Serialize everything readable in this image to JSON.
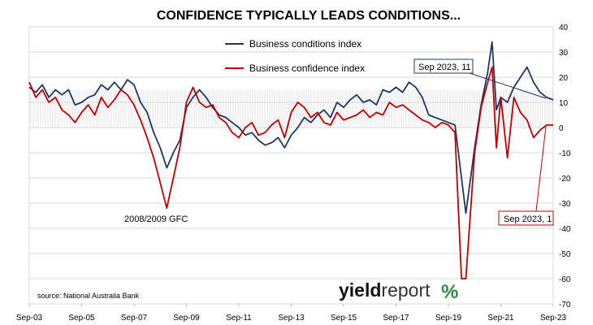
{
  "chart_data": {
    "type": "line",
    "title": "CONFIDENCE TYPICALLY LEADS CONDITIONS...",
    "x_tick_labels": [
      "Sep-03",
      "Sep-05",
      "Sep-07",
      "Sep-09",
      "Sep-11",
      "Sep-13",
      "Sep-15",
      "Sep-17",
      "Sep-19",
      "Sep-21",
      "Sep-23"
    ],
    "xlim": [
      "2003-09",
      "2023-09"
    ],
    "ylim": [
      -70,
      40
    ],
    "y_ticks": [
      40,
      30,
      20,
      10,
      0,
      -10,
      -20,
      -30,
      -40,
      -50,
      -60,
      -70
    ],
    "y_axis_side": "right",
    "legend_position": "top-center",
    "grid": true,
    "series": [
      {
        "name": "Business conditions index",
        "color": "#1f3864",
        "points": [
          [
            "2003-09",
            16
          ],
          [
            "2003-12",
            14
          ],
          [
            "2004-03",
            17
          ],
          [
            "2004-06",
            12
          ],
          [
            "2004-09",
            15
          ],
          [
            "2004-12",
            13
          ],
          [
            "2005-03",
            15
          ],
          [
            "2005-06",
            9
          ],
          [
            "2005-09",
            10
          ],
          [
            "2005-12",
            12
          ],
          [
            "2006-03",
            13
          ],
          [
            "2006-06",
            17
          ],
          [
            "2006-09",
            15
          ],
          [
            "2006-12",
            18
          ],
          [
            "2007-03",
            15
          ],
          [
            "2007-06",
            19
          ],
          [
            "2007-09",
            17
          ],
          [
            "2007-12",
            10
          ],
          [
            "2008-03",
            6
          ],
          [
            "2008-06",
            -2
          ],
          [
            "2008-09",
            -8
          ],
          [
            "2008-12",
            -16
          ],
          [
            "2009-03",
            -10
          ],
          [
            "2009-06",
            -5
          ],
          [
            "2009-09",
            8
          ],
          [
            "2009-12",
            12
          ],
          [
            "2010-03",
            15
          ],
          [
            "2010-06",
            12
          ],
          [
            "2010-09",
            8
          ],
          [
            "2010-12",
            5
          ],
          [
            "2011-03",
            4
          ],
          [
            "2011-06",
            2
          ],
          [
            "2011-09",
            0
          ],
          [
            "2011-12",
            -3
          ],
          [
            "2012-03",
            -2
          ],
          [
            "2012-06",
            -5
          ],
          [
            "2012-09",
            -7
          ],
          [
            "2012-12",
            -6
          ],
          [
            "2013-03",
            -4
          ],
          [
            "2013-06",
            -8
          ],
          [
            "2013-09",
            -3
          ],
          [
            "2013-12",
            0
          ],
          [
            "2014-03",
            4
          ],
          [
            "2014-06",
            2
          ],
          [
            "2014-09",
            5
          ],
          [
            "2014-12",
            7
          ],
          [
            "2015-03",
            4
          ],
          [
            "2015-06",
            10
          ],
          [
            "2015-09",
            8
          ],
          [
            "2015-12",
            11
          ],
          [
            "2016-03",
            13
          ],
          [
            "2016-06",
            10
          ],
          [
            "2016-09",
            11
          ],
          [
            "2016-12",
            9
          ],
          [
            "2017-03",
            15
          ],
          [
            "2017-06",
            14
          ],
          [
            "2017-09",
            16
          ],
          [
            "2017-12",
            14
          ],
          [
            "2018-03",
            18
          ],
          [
            "2018-06",
            16
          ],
          [
            "2018-09",
            12
          ],
          [
            "2018-12",
            5
          ],
          [
            "2019-03",
            4
          ],
          [
            "2019-06",
            3
          ],
          [
            "2019-09",
            2
          ],
          [
            "2019-12",
            1
          ],
          [
            "2020-03",
            -20
          ],
          [
            "2020-05",
            -34
          ],
          [
            "2020-09",
            -8
          ],
          [
            "2020-12",
            9
          ],
          [
            "2021-03",
            22
          ],
          [
            "2021-05",
            34
          ],
          [
            "2021-07",
            7
          ],
          [
            "2021-09",
            12
          ],
          [
            "2021-12",
            10
          ],
          [
            "2022-03",
            16
          ],
          [
            "2022-06",
            20
          ],
          [
            "2022-09",
            24
          ],
          [
            "2022-12",
            18
          ],
          [
            "2023-03",
            14
          ],
          [
            "2023-06",
            12
          ],
          [
            "2023-09",
            11
          ]
        ]
      },
      {
        "name": "Business confidence index",
        "color": "#c00000",
        "points": [
          [
            "2003-09",
            18
          ],
          [
            "2003-12",
            12
          ],
          [
            "2004-03",
            15
          ],
          [
            "2004-06",
            10
          ],
          [
            "2004-09",
            12
          ],
          [
            "2004-12",
            7
          ],
          [
            "2005-03",
            5
          ],
          [
            "2005-06",
            2
          ],
          [
            "2005-09",
            6
          ],
          [
            "2005-12",
            9
          ],
          [
            "2006-03",
            5
          ],
          [
            "2006-06",
            12
          ],
          [
            "2006-09",
            8
          ],
          [
            "2006-12",
            11
          ],
          [
            "2007-03",
            15
          ],
          [
            "2007-06",
            13
          ],
          [
            "2007-09",
            9
          ],
          [
            "2007-12",
            3
          ],
          [
            "2008-03",
            -4
          ],
          [
            "2008-06",
            -12
          ],
          [
            "2008-09",
            -22
          ],
          [
            "2008-12",
            -32
          ],
          [
            "2009-03",
            -20
          ],
          [
            "2009-06",
            -8
          ],
          [
            "2009-09",
            10
          ],
          [
            "2009-12",
            16
          ],
          [
            "2010-03",
            10
          ],
          [
            "2010-06",
            8
          ],
          [
            "2010-09",
            9
          ],
          [
            "2010-12",
            4
          ],
          [
            "2011-03",
            2
          ],
          [
            "2011-06",
            -2
          ],
          [
            "2011-09",
            -4
          ],
          [
            "2011-12",
            0
          ],
          [
            "2012-03",
            2
          ],
          [
            "2012-06",
            -3
          ],
          [
            "2012-09",
            -2
          ],
          [
            "2012-12",
            1
          ],
          [
            "2013-03",
            3
          ],
          [
            "2013-06",
            -4
          ],
          [
            "2013-09",
            6
          ],
          [
            "2013-12",
            10
          ],
          [
            "2014-03",
            8
          ],
          [
            "2014-06",
            4
          ],
          [
            "2014-09",
            6
          ],
          [
            "2014-12",
            2
          ],
          [
            "2015-03",
            1
          ],
          [
            "2015-06",
            6
          ],
          [
            "2015-09",
            3
          ],
          [
            "2015-12",
            4
          ],
          [
            "2016-03",
            5
          ],
          [
            "2016-06",
            7
          ],
          [
            "2016-09",
            4
          ],
          [
            "2016-12",
            6
          ],
          [
            "2017-03",
            5
          ],
          [
            "2017-06",
            10
          ],
          [
            "2017-09",
            8
          ],
          [
            "2017-12",
            9
          ],
          [
            "2018-03",
            7
          ],
          [
            "2018-06",
            5
          ],
          [
            "2018-09",
            3
          ],
          [
            "2018-12",
            2
          ],
          [
            "2019-03",
            0
          ],
          [
            "2019-06",
            2
          ],
          [
            "2019-09",
            1
          ],
          [
            "2019-12",
            -2
          ],
          [
            "2020-03",
            -60
          ],
          [
            "2020-05",
            -60
          ],
          [
            "2020-09",
            -10
          ],
          [
            "2020-12",
            8
          ],
          [
            "2021-03",
            18
          ],
          [
            "2021-05",
            24
          ],
          [
            "2021-07",
            -8
          ],
          [
            "2021-09",
            12
          ],
          [
            "2021-12",
            -12
          ],
          [
            "2022-03",
            12
          ],
          [
            "2022-06",
            6
          ],
          [
            "2022-09",
            3
          ],
          [
            "2022-12",
            -4
          ],
          [
            "2023-03",
            -1
          ],
          [
            "2023-06",
            1
          ],
          [
            "2023-09",
            1
          ]
        ]
      }
    ],
    "annotations": [
      {
        "text": "2008/2009 GFC",
        "series": "Business confidence index",
        "point": [
          "2008-12",
          -32
        ]
      },
      {
        "text": "Sep 2023, 11",
        "series": "Business conditions index",
        "point": [
          "2023-09",
          11
        ],
        "color": "#1f3864"
      },
      {
        "text": "Sep 2023, 1",
        "series": "Business confidence index",
        "point": [
          "2023-09",
          1
        ],
        "color": "#c00000"
      }
    ],
    "source": "source: National Australia Bank"
  },
  "logo": {
    "part1": "yield",
    "part2": "report",
    "symbol": "%"
  }
}
